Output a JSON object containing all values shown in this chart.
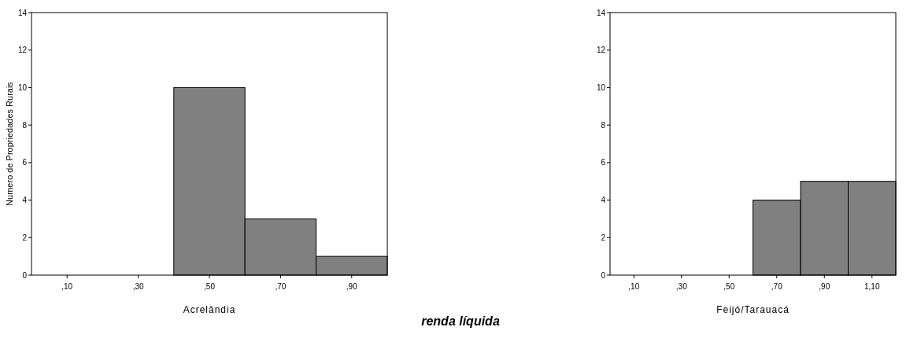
{
  "chart_data": [
    {
      "type": "bar",
      "xlabel": "Acrelândia",
      "ylabel": "Numero de Propriedades Rurais",
      "categories": [
        ",10",
        ",30",
        ",50",
        ",70",
        ",90"
      ],
      "values": [
        0,
        0,
        10,
        3,
        1
      ],
      "color": "#808080",
      "ylim": [
        0,
        14
      ],
      "yticks": [
        0,
        2,
        4,
        6,
        8,
        10,
        12,
        14
      ],
      "annotations": [
        "renda líquida"
      ]
    },
    {
      "type": "bar",
      "xlabel": "Feijó/Tarauacá",
      "categories": [
        ",10",
        ",30",
        ",50",
        ",70",
        ",90",
        "1,10"
      ],
      "values": [
        0,
        0,
        0,
        4,
        5,
        5
      ],
      "color": "#808080",
      "ylim": [
        0,
        14
      ],
      "yticks": [
        0,
        2,
        4,
        6,
        8,
        10,
        12,
        14
      ]
    }
  ]
}
